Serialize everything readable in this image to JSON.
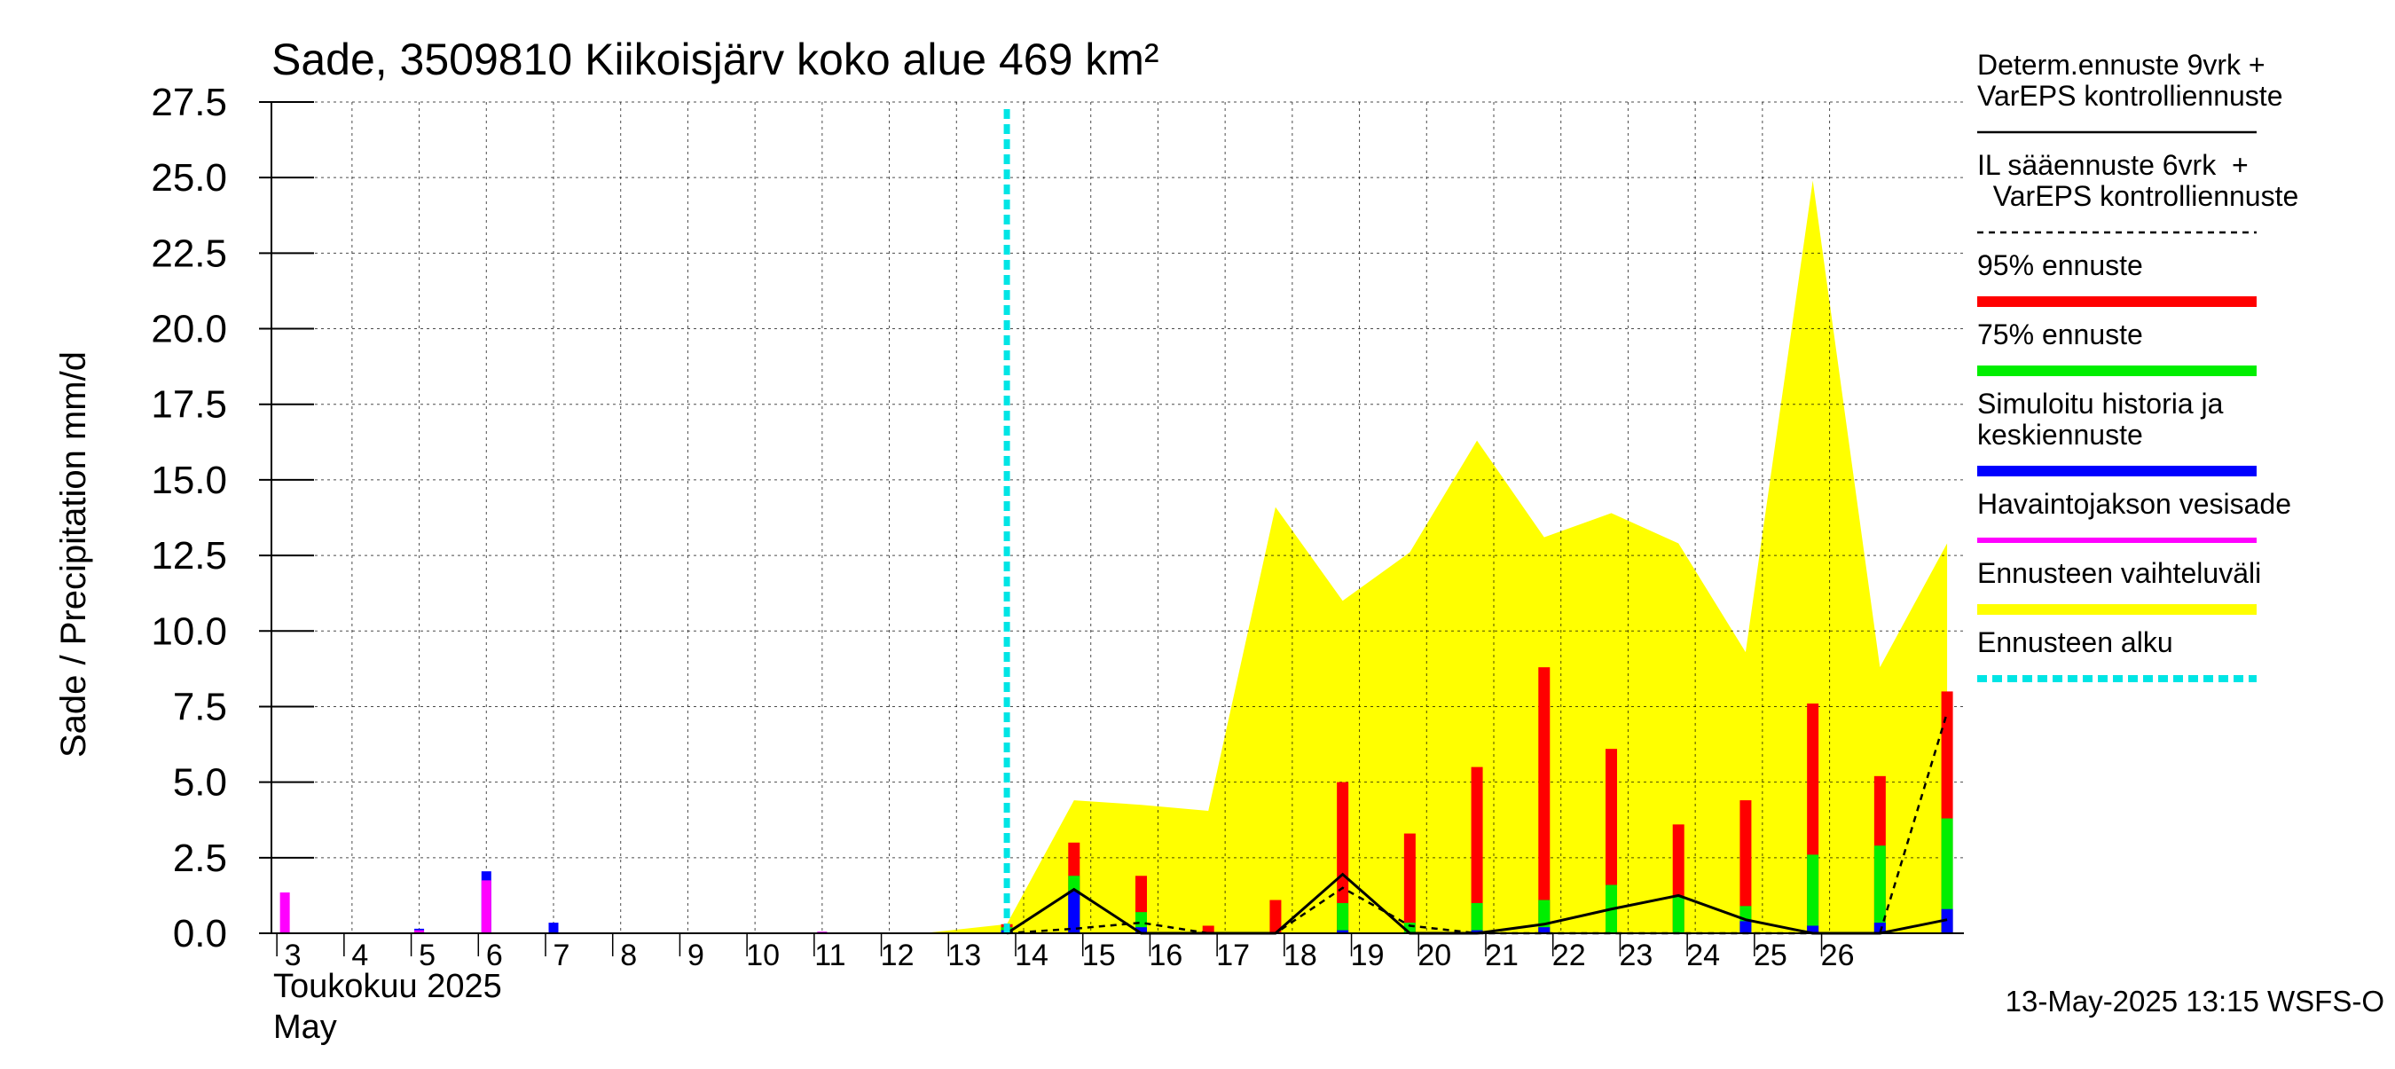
{
  "chart_data": {
    "type": "bar",
    "title": "Sade, 3509810 Kiikoisjärv koko alue 469 km²",
    "ylabel": "Sade / Precipitation   mm/d",
    "ylim": [
      0,
      27.5
    ],
    "yticks": [
      "0.0",
      "2.5",
      "5.0",
      "7.5",
      "10.0",
      "12.5",
      "15.0",
      "17.5",
      "20.0",
      "22.5",
      "25.0",
      "27.5"
    ],
    "x_day_labels": [
      "3",
      "4",
      "5",
      "6",
      "7",
      "8",
      "9",
      "10",
      "11",
      "12",
      "13",
      "14",
      "15",
      "16",
      "17",
      "18",
      "19",
      "20",
      "21",
      "22",
      "23",
      "24",
      "25",
      "26"
    ],
    "x_month_fi": "Toukokuu  2025",
    "x_month_en": "May",
    "footer": "13-May-2025 13:15 WSFS-O",
    "forecast_start_day": 13.75,
    "colors": {
      "p95": "#ff0000",
      "p75": "#00ee00",
      "mean": "#0000ff",
      "observed": "#ff00ff",
      "range": "#ffff00",
      "forecast_start": "#00e5e5",
      "determ": "#000000"
    },
    "legend": [
      {
        "label": "Determ.ennuste 9vrk +\nVarEPS kontrolliennuste",
        "style": "solid-thin",
        "color": "#000000"
      },
      {
        "label": "IL sääennuste 6vrk  +\n  VarEPS kontrolliennuste",
        "style": "dashed-thin",
        "color": "#000000"
      },
      {
        "label": "95% ennuste",
        "style": "thick",
        "color": "#ff0000"
      },
      {
        "label": "75% ennuste",
        "style": "thick",
        "color": "#00ee00"
      },
      {
        "label": "Simuloitu historia ja\nkeskiennuste",
        "style": "thick",
        "color": "#0000ff"
      },
      {
        "label": "Havaintojakson vesisade",
        "style": "medium",
        "color": "#ff00ff"
      },
      {
        "label": "Ennusteen vaihteluväli",
        "style": "thick",
        "color": "#ffff00"
      },
      {
        "label": "Ennusteen alku",
        "style": "dashed-thick",
        "color": "#00e5e5"
      }
    ],
    "observed": [
      {
        "day": 3,
        "value": 1.35
      },
      {
        "day": 5,
        "value": 0.1
      },
      {
        "day": 6,
        "value": 1.75
      },
      {
        "day": 11,
        "value": 0.05
      }
    ],
    "simulated": [
      {
        "day": 3,
        "value": 0.0
      },
      {
        "day": 5,
        "value": 0.15
      },
      {
        "day": 6,
        "value": 2.05
      },
      {
        "day": 7,
        "value": 0.35
      },
      {
        "day": 11,
        "value": 0.05
      }
    ],
    "forecast_bars": [
      {
        "day": 13.75,
        "p95": 0.3,
        "p75": 0.2,
        "mean": 0.1
      },
      {
        "day": 14.75,
        "p95": 3.0,
        "p75": 1.9,
        "mean": 1.4
      },
      {
        "day": 15.75,
        "p95": 1.9,
        "p75": 0.7,
        "mean": 0.2
      },
      {
        "day": 16.75,
        "p95": 0.25,
        "p75": 0.0,
        "mean": 0.0
      },
      {
        "day": 17.75,
        "p95": 1.1,
        "p75": 0.0,
        "mean": 0.0
      },
      {
        "day": 18.75,
        "p95": 5.0,
        "p75": 1.0,
        "mean": 0.1
      },
      {
        "day": 19.75,
        "p95": 3.3,
        "p75": 0.35,
        "mean": 0.0
      },
      {
        "day": 20.75,
        "p95": 5.5,
        "p75": 1.0,
        "mean": 0.1
      },
      {
        "day": 21.75,
        "p95": 8.8,
        "p75": 1.1,
        "mean": 0.2
      },
      {
        "day": 22.75,
        "p95": 6.1,
        "p75": 1.6,
        "mean": 0.0
      },
      {
        "day": 23.75,
        "p95": 3.6,
        "p75": 1.2,
        "mean": 0.0
      },
      {
        "day": 24.75,
        "p95": 4.4,
        "p75": 0.9,
        "mean": 0.4
      },
      {
        "day": 25.75,
        "p95": 7.6,
        "p75": 2.6,
        "mean": 0.25
      },
      {
        "day": 26.75,
        "p95": 5.2,
        "p75": 2.9,
        "mean": 0.35
      },
      {
        "day": 27.75,
        "p95": 8.0,
        "p75": 3.8,
        "mean": 0.8
      }
    ],
    "range_band": {
      "x": [
        12.5,
        13.75,
        14.75,
        15.75,
        16.75,
        17.75,
        18.75,
        19.75,
        20.75,
        21.75,
        22.75,
        23.75,
        24.75,
        25.75,
        26.75,
        27.75
      ],
      "upper": [
        0.0,
        0.3,
        4.4,
        4.25,
        4.05,
        14.1,
        11.0,
        12.6,
        16.3,
        13.1,
        13.9,
        12.9,
        9.3,
        24.9,
        8.8,
        12.9
      ]
    },
    "determ_line": {
      "x": [
        13.75,
        14.75,
        15.75,
        16.75,
        17.75,
        18.75,
        19.75,
        20.75,
        21.75,
        22.75,
        23.75,
        24.75,
        25.75,
        26.75,
        27.75
      ],
      "y": [
        0.0,
        1.45,
        0.0,
        0.0,
        0.0,
        1.95,
        0.0,
        0.0,
        0.3,
        0.8,
        1.25,
        0.45,
        0.0,
        0.0,
        0.45
      ]
    },
    "il_line": {
      "x": [
        13.75,
        14.75,
        15.75,
        16.75,
        17.75,
        18.75,
        19.75,
        20.75,
        21.75,
        22.75,
        23.75,
        24.75,
        25.75,
        26.75,
        27.75
      ],
      "y": [
        0.0,
        0.15,
        0.35,
        0.0,
        0.0,
        1.5,
        0.25,
        0.0,
        0.0,
        0.0,
        0.0,
        0.0,
        0.0,
        0.0,
        7.3
      ]
    }
  }
}
